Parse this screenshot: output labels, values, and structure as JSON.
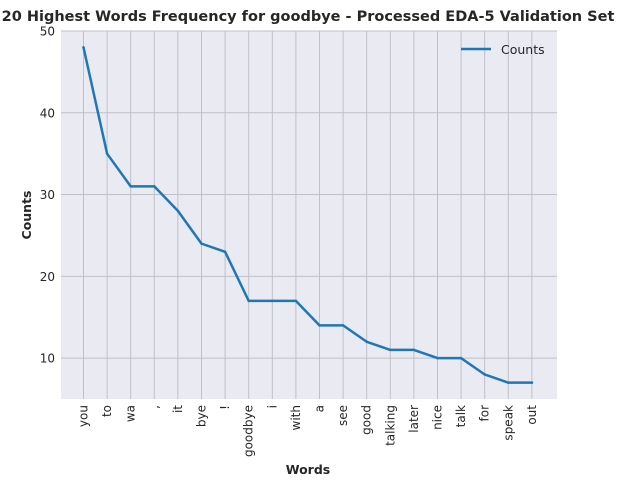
{
  "chart_data": {
    "type": "line",
    "title": "20 Highest Words Frequency for goodbye - Processed EDA-5 Validation Set",
    "xlabel": "Words",
    "ylabel": "Counts",
    "categories": [
      "you",
      "to",
      "wa",
      ",",
      "it",
      "bye",
      "!",
      "goodbye",
      "i",
      "with",
      "a",
      "see",
      "good",
      "talking",
      "later",
      "nice",
      "talk",
      "for",
      "speak",
      "out"
    ],
    "series": [
      {
        "name": "Counts",
        "values": [
          48,
          35,
          31,
          31,
          28,
          24,
          23,
          17,
          17,
          17,
          14,
          14,
          12,
          11,
          11,
          10,
          10,
          8,
          7,
          7
        ]
      }
    ],
    "ylim": [
      5,
      50
    ],
    "yticks": [
      10,
      20,
      30,
      40,
      50
    ],
    "grid": true,
    "legend_position": "top-right",
    "style": {
      "plot_background": "#eaeaf2",
      "grid_color": "#c0c0c8",
      "line_color": "#1f77b4"
    }
  }
}
